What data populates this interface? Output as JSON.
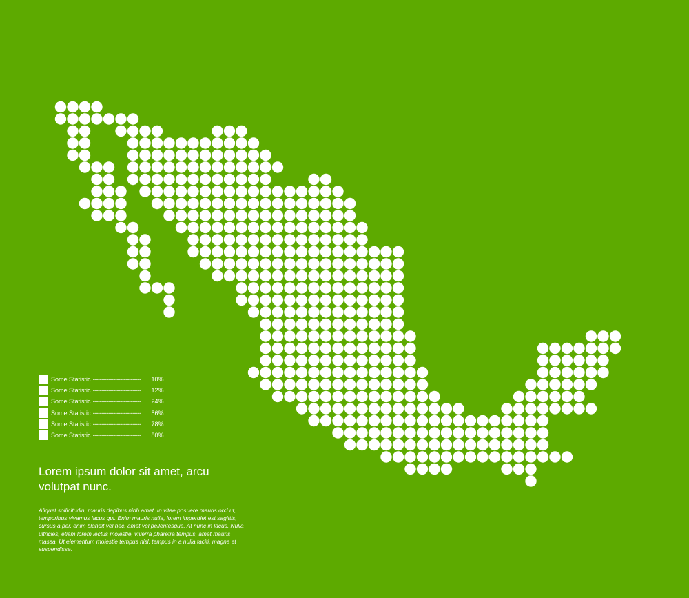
{
  "colors": {
    "background": "#5daa00",
    "foreground": "#ffffff"
  },
  "map": {
    "region": "Mexico",
    "style": "dot-matrix",
    "rows": [
      [
        0,
        1,
        2,
        3
      ],
      [
        0,
        1,
        2,
        3,
        4,
        5,
        6
      ],
      [
        1,
        2,
        5,
        6,
        7,
        8,
        13,
        14,
        15
      ],
      [
        1,
        2,
        6,
        7,
        8,
        9,
        10,
        11,
        12,
        13,
        14,
        15,
        16
      ],
      [
        1,
        2,
        6,
        7,
        8,
        9,
        10,
        11,
        12,
        13,
        14,
        15,
        16,
        17
      ],
      [
        2,
        3,
        4,
        6,
        7,
        8,
        9,
        10,
        11,
        12,
        13,
        14,
        15,
        16,
        17,
        18
      ],
      [
        3,
        4,
        6,
        7,
        8,
        9,
        10,
        11,
        12,
        13,
        14,
        15,
        16,
        17,
        21,
        22
      ],
      [
        3,
        4,
        5,
        7,
        8,
        9,
        10,
        11,
        12,
        13,
        14,
        15,
        16,
        17,
        18,
        19,
        20,
        21,
        22,
        23
      ],
      [
        2,
        3,
        4,
        5,
        8,
        9,
        10,
        11,
        12,
        13,
        14,
        15,
        16,
        17,
        18,
        19,
        20,
        21,
        22,
        23,
        24
      ],
      [
        3,
        4,
        5,
        9,
        10,
        11,
        12,
        13,
        14,
        15,
        16,
        17,
        18,
        19,
        20,
        21,
        22,
        23,
        24
      ],
      [
        5,
        6,
        10,
        11,
        12,
        13,
        14,
        15,
        16,
        17,
        18,
        19,
        20,
        21,
        22,
        23,
        24,
        25
      ],
      [
        6,
        7,
        11,
        12,
        13,
        14,
        15,
        16,
        17,
        18,
        19,
        20,
        21,
        22,
        23,
        24,
        25
      ],
      [
        6,
        7,
        11,
        12,
        13,
        14,
        15,
        16,
        17,
        18,
        19,
        20,
        21,
        22,
        23,
        24,
        25,
        26,
        27,
        28
      ],
      [
        6,
        7,
        12,
        13,
        14,
        15,
        16,
        17,
        18,
        19,
        20,
        21,
        22,
        23,
        24,
        25,
        26,
        27,
        28
      ],
      [
        7,
        13,
        14,
        15,
        16,
        17,
        18,
        19,
        20,
        21,
        22,
        23,
        24,
        25,
        26,
        27,
        28
      ],
      [
        7,
        8,
        9,
        15,
        16,
        17,
        18,
        19,
        20,
        21,
        22,
        23,
        24,
        25,
        26,
        27,
        28
      ],
      [
        9,
        15,
        16,
        17,
        18,
        19,
        20,
        21,
        22,
        23,
        24,
        25,
        26,
        27,
        28
      ],
      [
        9,
        16,
        17,
        18,
        19,
        20,
        21,
        22,
        23,
        24,
        25,
        26,
        27,
        28
      ],
      [
        17,
        18,
        19,
        20,
        21,
        22,
        23,
        24,
        25,
        26,
        27,
        28
      ],
      [
        17,
        18,
        19,
        20,
        21,
        22,
        23,
        24,
        25,
        26,
        27,
        28,
        29,
        44,
        45,
        46
      ],
      [
        17,
        18,
        19,
        20,
        21,
        22,
        23,
        24,
        25,
        26,
        27,
        28,
        29,
        40,
        41,
        42,
        43,
        44,
        45,
        46
      ],
      [
        17,
        18,
        19,
        20,
        21,
        22,
        23,
        24,
        25,
        26,
        27,
        28,
        29,
        40,
        41,
        42,
        43,
        44,
        45
      ],
      [
        16,
        17,
        18,
        19,
        20,
        21,
        22,
        23,
        24,
        25,
        26,
        27,
        28,
        29,
        30,
        40,
        41,
        42,
        43,
        44,
        45
      ],
      [
        17,
        18,
        19,
        20,
        21,
        22,
        23,
        24,
        25,
        26,
        27,
        28,
        29,
        30,
        39,
        40,
        41,
        42,
        43,
        44
      ],
      [
        18,
        19,
        20,
        21,
        22,
        23,
        24,
        25,
        26,
        27,
        28,
        29,
        30,
        31,
        38,
        39,
        40,
        41,
        42,
        43
      ],
      [
        20,
        21,
        22,
        23,
        24,
        25,
        26,
        27,
        28,
        29,
        30,
        31,
        32,
        33,
        37,
        38,
        39,
        40,
        41,
        42,
        43,
        44
      ],
      [
        21,
        22,
        23,
        24,
        25,
        26,
        27,
        28,
        29,
        30,
        31,
        32,
        33,
        34,
        35,
        36,
        37,
        38,
        39,
        40
      ],
      [
        23,
        24,
        25,
        26,
        27,
        28,
        29,
        30,
        31,
        32,
        33,
        34,
        35,
        36,
        37,
        38,
        39,
        40
      ],
      [
        24,
        25,
        26,
        27,
        28,
        29,
        30,
        31,
        32,
        33,
        34,
        35,
        36,
        37,
        38,
        39,
        40
      ],
      [
        27,
        28,
        29,
        30,
        31,
        32,
        33,
        34,
        35,
        36,
        37,
        38,
        39,
        40,
        41,
        42
      ],
      [
        29,
        30,
        31,
        32,
        37,
        38,
        39
      ],
      [
        39
      ]
    ]
  },
  "legend": [
    {
      "label": "Some Statistic",
      "leader": "----------------------------",
      "value": "10%"
    },
    {
      "label": "Some Statistic",
      "leader": "----------------------------",
      "value": "12%"
    },
    {
      "label": "Some Statistic",
      "leader": "----------------------------",
      "value": "24%"
    },
    {
      "label": "Some Statistic",
      "leader": "----------------------------",
      "value": "56%"
    },
    {
      "label": "Some Statistic",
      "leader": "----------------------------",
      "value": "78%"
    },
    {
      "label": "Some Statistic",
      "leader": "----------------------------",
      "value": "80%"
    }
  ],
  "headline": "Lorem ipsum dolor sit amet, arcu volutpat nunc.",
  "body": "Aliquet sollicitudin, mauris dapibus nibh amet. In vitae posuere mauris orci ut, temporibus vivamus lacus qui. Enim mauris nulla, lorem imperdiet est sagittis, cursus a per, enim blandit vel nec, amet vel pellentesque. At nunc in lacus. Nulla ultricies, etiam lorem lectus molestie, viverra pharetra tempus, amet mauris massa. Ut elementum molestie tempus nisl, tempus in a nulla taciti, magna et suspendisse."
}
